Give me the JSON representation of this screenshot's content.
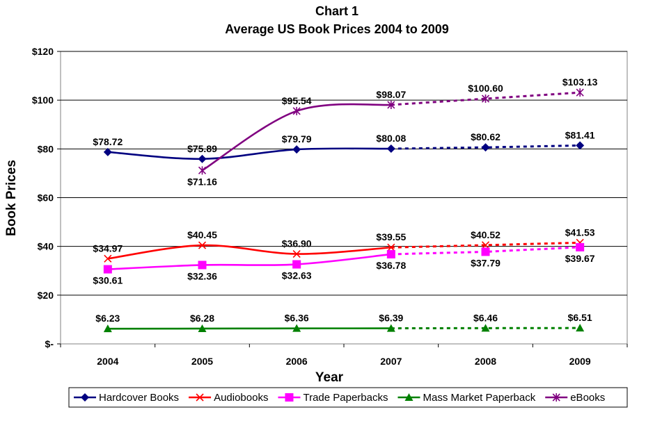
{
  "chart_data": {
    "type": "line",
    "title": "Chart 1",
    "subtitle": "Average US Book Prices 2004 to 2009",
    "xlabel": "Year",
    "ylabel": "Book Prices",
    "categories": [
      "2004",
      "2005",
      "2006",
      "2007",
      "2008",
      "2009"
    ],
    "y_tick_labels": [
      "$-",
      "$20",
      "$40",
      "$60",
      "$80",
      "$100",
      "$120"
    ],
    "y_ticks": [
      0,
      20,
      40,
      60,
      80,
      100,
      120
    ],
    "ylim": [
      0,
      120
    ],
    "grid": "horizontal",
    "legend_position": "bottom",
    "projected_from_index": 3,
    "series": [
      {
        "name": "Hardcover Books",
        "color": "#000080",
        "marker": "diamond",
        "values": [
          78.72,
          75.89,
          79.79,
          80.08,
          80.62,
          81.41
        ],
        "labels": [
          "$78.72",
          "$75.89",
          "$79.79",
          "$80.08",
          "$80.62",
          "$81.41"
        ],
        "label_side": [
          "above",
          "above",
          "above",
          "above",
          "above",
          "above"
        ]
      },
      {
        "name": "Audiobooks",
        "color": "#ff0000",
        "marker": "x",
        "values": [
          34.97,
          40.45,
          36.9,
          39.55,
          40.52,
          41.53
        ],
        "labels": [
          "$34.97",
          "$40.45",
          "$36.90",
          "$39.55",
          "$40.52",
          "$41.53"
        ],
        "label_side": [
          "above",
          "above",
          "above",
          "above",
          "above",
          "above"
        ]
      },
      {
        "name": "Trade Paperbacks",
        "color": "#ff00ff",
        "marker": "square",
        "values": [
          30.61,
          32.36,
          32.63,
          36.78,
          37.79,
          39.67
        ],
        "labels": [
          "$30.61",
          "$32.36",
          "$32.63",
          "$36.78",
          "$37.79",
          "$39.67"
        ],
        "label_side": [
          "below",
          "below",
          "below",
          "below",
          "below",
          "below"
        ]
      },
      {
        "name": "Mass Market Paperback",
        "color": "#008000",
        "marker": "triangle",
        "values": [
          6.23,
          6.28,
          6.36,
          6.39,
          6.46,
          6.51
        ],
        "labels": [
          "$6.23",
          "$6.28",
          "$6.36",
          "$6.39",
          "$6.46",
          "$6.51"
        ],
        "label_side": [
          "above",
          "above",
          "above",
          "above",
          "above",
          "above"
        ]
      },
      {
        "name": "eBooks",
        "color": "#800080",
        "marker": "star",
        "values": [
          null,
          71.16,
          95.54,
          98.07,
          100.6,
          103.13
        ],
        "labels": [
          "",
          "$71.16",
          "$95.54",
          "$98.07",
          "$100.60",
          "$103.13"
        ],
        "label_side": [
          "above",
          "below",
          "above",
          "above",
          "above",
          "above"
        ]
      }
    ]
  }
}
